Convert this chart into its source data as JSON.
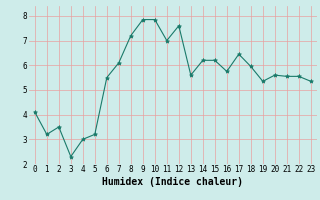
{
  "x": [
    0,
    1,
    2,
    3,
    4,
    5,
    6,
    7,
    8,
    9,
    10,
    11,
    12,
    13,
    14,
    15,
    16,
    17,
    18,
    19,
    20,
    21,
    22,
    23
  ],
  "y": [
    4.1,
    3.2,
    3.5,
    2.3,
    3.0,
    3.2,
    5.5,
    6.1,
    7.2,
    7.85,
    7.85,
    7.0,
    7.6,
    5.6,
    6.2,
    6.2,
    5.75,
    6.45,
    5.95,
    5.35,
    5.6,
    5.55,
    5.55,
    5.35
  ],
  "line_color": "#1a7a6a",
  "marker": "*",
  "marker_size": 3,
  "background_color": "#ceecea",
  "grid_color": "#e8a0a0",
  "xlabel": "Humidex (Indice chaleur)",
  "xlabel_fontsize": 7,
  "xlabel_fontweight": "bold",
  "ylim": [
    2.0,
    8.4
  ],
  "xlim": [
    -0.5,
    23.5
  ],
  "yticks": [
    2,
    3,
    4,
    5,
    6,
    7,
    8
  ],
  "xticks": [
    0,
    1,
    2,
    3,
    4,
    5,
    6,
    7,
    8,
    9,
    10,
    11,
    12,
    13,
    14,
    15,
    16,
    17,
    18,
    19,
    20,
    21,
    22,
    23
  ],
  "tick_fontsize": 5.5,
  "linewidth": 0.8
}
